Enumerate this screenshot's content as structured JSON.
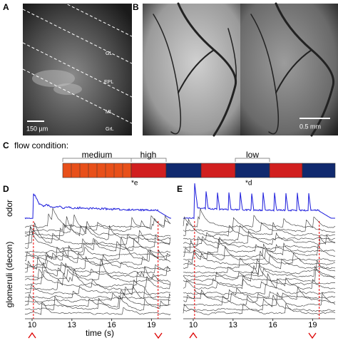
{
  "panels": [
    {
      "label": "A",
      "layer_labels": [
        "GL",
        "EPL",
        "ML",
        "GrL"
      ],
      "scale_bar": "150 µm"
    },
    {
      "label": "B",
      "scale_bar": "0.5 mm"
    },
    {
      "label": "C",
      "title": "flow condition:",
      "conditions": [
        "medium",
        "high",
        "low"
      ],
      "markers": [
        "*e",
        "*d"
      ]
    },
    {
      "label": "D",
      "y_labels": [
        "odor",
        "glomeruli (decon)"
      ],
      "x_ticks": [
        10,
        13,
        16,
        19
      ],
      "x_label": "time (s)"
    },
    {
      "label": "E",
      "x_ticks": [
        10,
        13,
        16,
        19
      ]
    }
  ]
}
